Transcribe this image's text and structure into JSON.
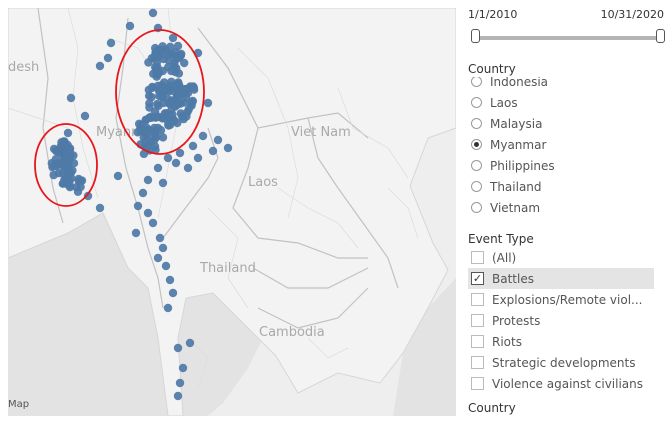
{
  "map": {
    "labels": {
      "myanmar": "Myanm",
      "bangladesh": "desh",
      "vietnam": "Viet Nam",
      "laos": "Laos",
      "thailand": "Thailand",
      "cambodia": "Cambodia"
    },
    "attribution": "Map",
    "point_color": "#4e79a7",
    "highlight_color": "#e8161b"
  },
  "date_filter": {
    "start": "1/1/2010",
    "end": "10/31/2020"
  },
  "country_filter": {
    "title": "Country",
    "options": [
      "Indonesia",
      "Laos",
      "Malaysia",
      "Myanmar",
      "Philippines",
      "Thailand",
      "Vietnam"
    ],
    "selected": "Myanmar"
  },
  "event_filter": {
    "title": "Event Type",
    "options": [
      "(All)",
      "Battles",
      "Explosions/Remote viol...",
      "Protests",
      "Riots",
      "Strategic developments",
      "Violence against civilians"
    ],
    "checked": [
      "Battles"
    ]
  },
  "country_filter_2": {
    "title": "Country"
  }
}
